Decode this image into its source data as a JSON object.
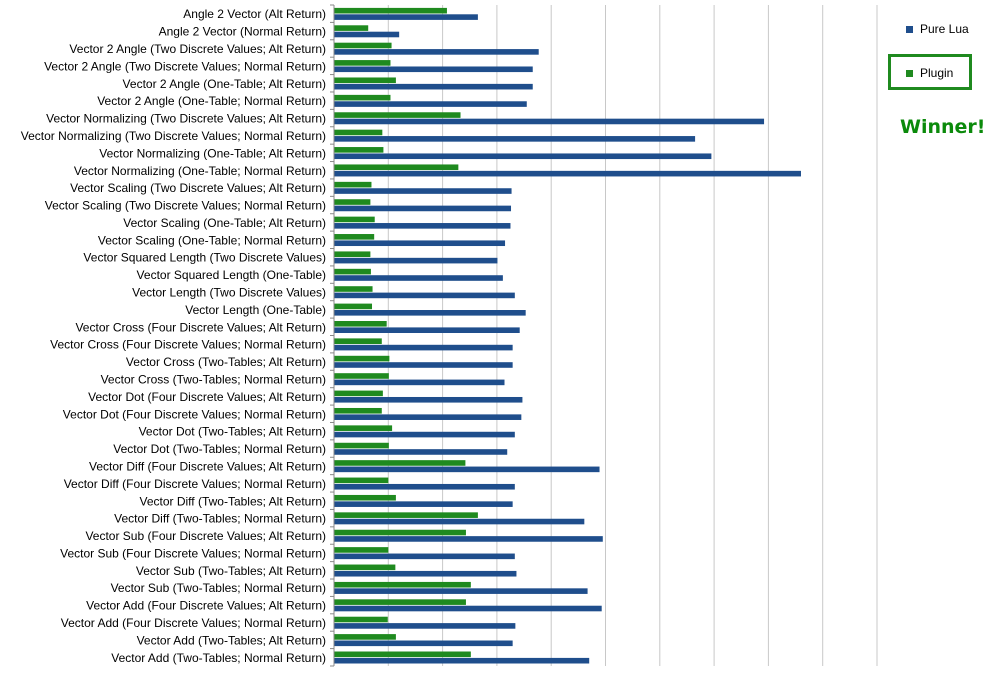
{
  "chart_data": {
    "type": "bar",
    "orientation": "horizontal",
    "categories": [
      "Angle 2 Vector (Alt Return)",
      "Angle 2 Vector (Normal Return)",
      "Vector 2 Angle (Two Discrete Values; Alt Return)",
      "Vector 2 Angle (Two Discrete Values; Normal Return)",
      "Vector 2 Angle (One-Table; Alt Return)",
      "Vector 2 Angle (One-Table; Normal Return)",
      "Vector Normalizing (Two Discrete Values; Alt Return)",
      "Vector Normalizing (Two Discrete Values; Normal Return)",
      "Vector Normalizing (One-Table; Alt Return)",
      "Vector Normalizing (One-Table; Normal Return)",
      "Vector Scaling (Two Discrete Values; Alt Return)",
      "Vector Scaling (Two Discrete Values; Normal Return)",
      "Vector Scaling (One-Table; Alt Return)",
      "Vector Scaling (One-Table; Normal Return)",
      "Vector Squared Length (Two Discrete Values)",
      "Vector Squared Length (One-Table)",
      "Vector Length (Two Discrete Values)",
      "Vector Length (One-Table)",
      "Vector Cross (Four Discrete Values; Alt Return)",
      "Vector Cross (Four Discrete Values; Normal Return)",
      "Vector Cross (Two-Tables; Alt Return)",
      "Vector Cross (Two-Tables; Normal Return)",
      "Vector Dot (Four Discrete Values; Alt Return)",
      "Vector Dot (Four Discrete Values; Normal Return)",
      "Vector Dot (Two-Tables; Alt Return)",
      "Vector Dot (Two-Tables; Normal Return)",
      "Vector Diff (Four Discrete Values; Alt Return)",
      "Vector Diff (Four Discrete Values; Normal Return)",
      "Vector Diff (Two-Tables; Alt Return)",
      "Vector Diff (Two-Tables; Normal Return)",
      "Vector Sub (Four Discrete Values; Alt Return)",
      "Vector Sub (Four Discrete Values; Normal Return)",
      "Vector Sub (Two-Tables; Alt Return)",
      "Vector Sub (Two-Tables; Normal Return)",
      "Vector Add (Four Discrete Values; Alt Return)",
      "Vector Add (Four Discrete Values; Normal Return)",
      "Vector Add (Two-Tables; Alt Return)",
      "Vector Add (Two-Tables; Normal Return)"
    ],
    "series": [
      {
        "name": "Pure Lua",
        "color": "#1f4e8c",
        "values": [
          2.65,
          1.2,
          3.77,
          3.66,
          3.66,
          3.55,
          7.92,
          6.65,
          6.95,
          8.6,
          3.27,
          3.26,
          3.25,
          3.15,
          3.01,
          3.11,
          3.33,
          3.53,
          3.42,
          3.29,
          3.29,
          3.14,
          3.47,
          3.45,
          3.33,
          3.19,
          4.89,
          3.33,
          3.29,
          4.61,
          4.95,
          3.33,
          3.36,
          4.67,
          4.93,
          3.34,
          3.29,
          4.7
        ]
      },
      {
        "name": "Plugin",
        "color": "#1f8a1f",
        "values": [
          2.08,
          0.63,
          1.06,
          1.04,
          1.14,
          1.04,
          2.33,
          0.89,
          0.91,
          2.29,
          0.69,
          0.67,
          0.75,
          0.74,
          0.67,
          0.68,
          0.71,
          0.7,
          0.97,
          0.88,
          1.02,
          1.01,
          0.9,
          0.88,
          1.07,
          1.01,
          2.42,
          1.0,
          1.14,
          2.65,
          2.43,
          1.0,
          1.13,
          2.52,
          2.43,
          0.99,
          1.14,
          2.52
        ]
      }
    ],
    "xlim": [
      0,
      10
    ],
    "x_gridlines": true,
    "legend_position": "right",
    "annotation": "Winner!"
  }
}
